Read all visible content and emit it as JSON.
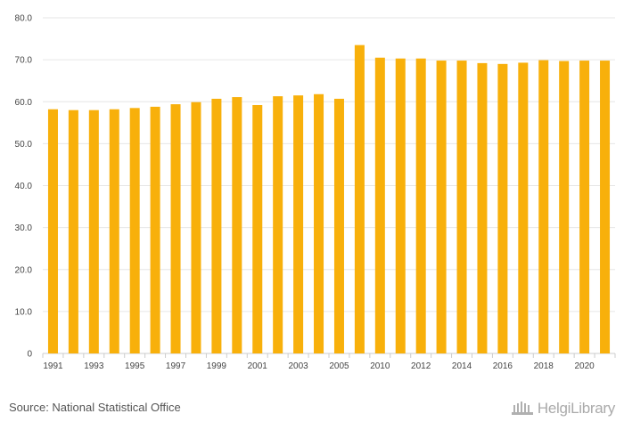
{
  "chart_data": {
    "type": "bar",
    "categories": [
      "1991",
      "1992",
      "1993",
      "1994",
      "1995",
      "1996",
      "1997",
      "1998",
      "1999",
      "2000",
      "2001",
      "2002",
      "2003",
      "2004",
      "2005",
      "2006",
      "2010",
      "2011",
      "2012",
      "2013",
      "2014",
      "2015",
      "2016",
      "2017",
      "2018",
      "2019",
      "2020",
      "2021"
    ],
    "x_tick_labels": [
      "1991",
      "",
      "1993",
      "",
      "1995",
      "",
      "1997",
      "",
      "1999",
      "",
      "2001",
      "",
      "2003",
      "",
      "2005",
      "",
      "2010",
      "",
      "2012",
      "",
      "2014",
      "",
      "2016",
      "",
      "2018",
      "",
      "2020",
      ""
    ],
    "values": [
      58.2,
      58.0,
      58.0,
      58.2,
      58.5,
      58.8,
      59.4,
      59.9,
      60.7,
      61.1,
      59.2,
      61.3,
      61.5,
      61.8,
      60.7,
      73.5,
      70.5,
      70.3,
      70.3,
      69.8,
      69.8,
      69.2,
      69.0,
      69.3,
      69.9,
      69.7,
      69.8,
      69.8
    ],
    "y_ticks": [
      "0",
      "10.0",
      "20.0",
      "30.0",
      "40.0",
      "50.0",
      "60.0",
      "70.0",
      "80.0"
    ],
    "ylim": [
      0,
      80
    ],
    "title": "",
    "xlabel": "",
    "ylabel": "",
    "grid": true,
    "bar_color": "#f8b00b"
  },
  "footer": {
    "source": "Source: National Statistical Office",
    "logo_text": "HelgiLibrary"
  }
}
